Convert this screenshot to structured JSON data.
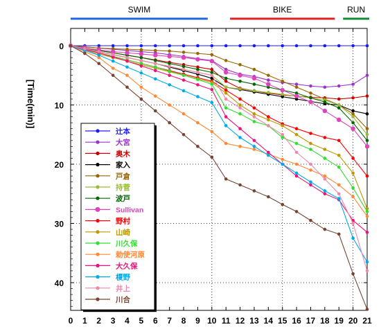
{
  "chart_data": {
    "type": "line",
    "ylabel": "[Time(min)]",
    "xlim": [
      0,
      21
    ],
    "ylim": [
      0,
      45
    ],
    "y_inverted": true,
    "x_ticks": [
      0,
      1,
      2,
      3,
      4,
      5,
      6,
      7,
      8,
      9,
      10,
      11,
      12,
      13,
      14,
      15,
      16,
      17,
      18,
      19,
      20,
      21
    ],
    "y_ticks": [
      0,
      10,
      20,
      30,
      40
    ],
    "grid": "vertical dotted at 5,10,15,20; horizontal dotted at 10,20,30,40",
    "legend_position": "bottom-left",
    "segments": [
      {
        "label": "SWIM",
        "start": 0,
        "end": 10,
        "color": "#2266dd"
      },
      {
        "label": "BIKE",
        "start": 11,
        "end": 19,
        "color": "#dd2222"
      },
      {
        "label": "RUN",
        "start": 19,
        "end": 21,
        "color": "#118833"
      }
    ],
    "x": [
      0,
      1,
      2,
      3,
      4,
      5,
      6,
      7,
      8,
      9,
      10,
      11,
      12,
      13,
      14,
      15,
      16,
      17,
      18,
      19,
      20,
      21
    ],
    "series": [
      {
        "name": "辻本",
        "color": "#1a1aff",
        "marker": "dot",
        "values": [
          0,
          0,
          0,
          0,
          0,
          0,
          0,
          0,
          0,
          0,
          0,
          0,
          0,
          0,
          0,
          0,
          0,
          0,
          0,
          0,
          0,
          0
        ]
      },
      {
        "name": "大宮",
        "color": "#9933cc",
        "marker": "dot",
        "values": [
          0,
          0.2,
          0.4,
          0.6,
          0.8,
          1.0,
          1.2,
          1.5,
          1.8,
          2.2,
          2.5,
          4.0,
          4.8,
          5.2,
          5.8,
          6.2,
          6.5,
          6.8,
          7.0,
          6.8,
          6.5,
          5.0
        ]
      },
      {
        "name": "奥木",
        "color": "#cc0000",
        "marker": "dot",
        "values": [
          0,
          0.4,
          0.8,
          1.2,
          1.6,
          2.0,
          2.4,
          2.8,
          3.2,
          3.6,
          4.0,
          6.0,
          7.2,
          7.6,
          8.0,
          8.3,
          8.5,
          8.7,
          8.8,
          9.0,
          8.8,
          8.5
        ]
      },
      {
        "name": "家入",
        "color": "#000000",
        "marker": "dot",
        "values": [
          0,
          0.5,
          1.0,
          1.5,
          2.0,
          2.5,
          3.0,
          3.6,
          4.2,
          4.8,
          5.5,
          7.0,
          7.4,
          7.8,
          8.2,
          8.6,
          9.0,
          9.4,
          9.8,
          10.0,
          11.0,
          11.5
        ]
      },
      {
        "name": "戸倉",
        "color": "#996600",
        "marker": "dot",
        "values": [
          0,
          0.2,
          0.4,
          0.5,
          0.6,
          0.7,
          0.8,
          0.9,
          1.1,
          1.3,
          1.5,
          2.5,
          3.2,
          4.0,
          5.0,
          6.0,
          7.0,
          8.0,
          9.0,
          10.0,
          11.5,
          14.0
        ]
      },
      {
        "name": "持菅",
        "color": "#99bb33",
        "marker": "dot",
        "values": [
          0,
          0.5,
          1.0,
          1.5,
          2.0,
          2.5,
          3.0,
          3.5,
          4.0,
          4.5,
          5.0,
          7.0,
          7.3,
          7.6,
          7.9,
          8.2,
          8.5,
          8.8,
          9.2,
          10.0,
          12.0,
          15.0
        ]
      },
      {
        "name": "波戸",
        "color": "#006600",
        "marker": "dot",
        "values": [
          0,
          0.4,
          0.8,
          1.2,
          1.6,
          2.0,
          2.5,
          3.0,
          3.5,
          4.0,
          4.5,
          5.5,
          6.0,
          6.5,
          7.0,
          7.5,
          8.0,
          8.8,
          9.5,
          10.5,
          13.0,
          16.0
        ]
      },
      {
        "name": "Sullivan",
        "color": "#dd44bb",
        "marker": "bigdot",
        "values": [
          0,
          0.4,
          0.7,
          1.0,
          1.2,
          1.4,
          1.6,
          1.8,
          2.0,
          2.3,
          2.6,
          4.5,
          5.0,
          5.5,
          6.5,
          7.5,
          8.5,
          9.5,
          11.0,
          12.5,
          14.0,
          17.0
        ]
      },
      {
        "name": "野村",
        "color": "#ff0000",
        "marker": "dot",
        "values": [
          0,
          0.6,
          1.2,
          1.8,
          2.4,
          3.0,
          3.6,
          4.2,
          4.8,
          5.4,
          6.0,
          7.5,
          9.0,
          10.5,
          12.0,
          13.2,
          14.0,
          14.8,
          15.5,
          16.0,
          19.0,
          22.0
        ]
      },
      {
        "name": "山崎",
        "color": "#bb9900",
        "marker": "dot",
        "values": [
          0,
          0.7,
          1.4,
          2.0,
          2.6,
          3.2,
          3.8,
          4.4,
          5.0,
          5.6,
          6.2,
          8.0,
          10.0,
          11.5,
          12.5,
          13.5,
          15.0,
          16.5,
          17.5,
          18.5,
          21.5,
          27.5
        ]
      },
      {
        "name": "川久保",
        "color": "#33dd33",
        "marker": "dot",
        "values": [
          0,
          0.6,
          1.2,
          1.8,
          2.4,
          3.0,
          3.6,
          4.3,
          5.0,
          5.7,
          6.5,
          10.5,
          11.5,
          12.8,
          13.5,
          15.5,
          16.5,
          17.5,
          19.0,
          20.5,
          24.0,
          28.0
        ]
      },
      {
        "name": "勅使河原",
        "color": "#ff8833",
        "marker": "dot",
        "values": [
          0,
          1.0,
          2.0,
          3.8,
          5.0,
          7.0,
          8.5,
          10.0,
          11.5,
          13.0,
          14.5,
          16.5,
          17.0,
          17.5,
          18.3,
          19.2,
          20.0,
          21.0,
          22.0,
          23.5,
          25.5,
          28.8
        ]
      },
      {
        "name": "大久保",
        "color": "#ee1177",
        "marker": "dot",
        "values": [
          0,
          0.6,
          1.2,
          1.9,
          2.6,
          3.4,
          4.2,
          5.0,
          5.8,
          6.6,
          7.4,
          12.0,
          14.0,
          16.0,
          18.0,
          20.0,
          22.0,
          23.5,
          25.0,
          26.0,
          29.5,
          31.5
        ]
      },
      {
        "name": "榎野",
        "color": "#00aaee",
        "marker": "dot",
        "values": [
          0,
          0.8,
          1.6,
          2.6,
          3.6,
          4.6,
          5.6,
          6.6,
          7.6,
          8.6,
          9.6,
          13.5,
          15.5,
          17.0,
          18.5,
          20.0,
          21.5,
          23.0,
          24.5,
          25.8,
          32.5,
          36.5
        ]
      },
      {
        "name": "井上",
        "color": "#ee88aa",
        "marker": "dot",
        "values": [
          0,
          0.5,
          1.0,
          1.5,
          2.0,
          2.5,
          3.0,
          3.5,
          4.0,
          4.5,
          5.0,
          9.0,
          10.5,
          12.0,
          13.5,
          15.0,
          18.0,
          20.0,
          22.5,
          25.0,
          30.0,
          38.0
        ]
      },
      {
        "name": "川合",
        "color": "#774433",
        "marker": "dot",
        "values": [
          0,
          1.3,
          3.0,
          5.0,
          7.0,
          9.0,
          11.0,
          13.0,
          15.0,
          17.0,
          18.8,
          22.5,
          23.5,
          24.5,
          25.5,
          26.8,
          28.0,
          29.5,
          31.0,
          31.8,
          38.5,
          44.5
        ]
      }
    ]
  }
}
